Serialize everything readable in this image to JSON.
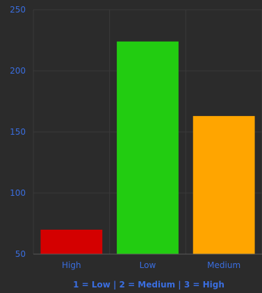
{
  "chart_data": {
    "type": "bar",
    "categories": [
      "High",
      "Low",
      "Medium"
    ],
    "values": [
      70,
      224,
      163
    ],
    "colors": [
      "#d40000",
      "#22cc11",
      "#ffa500"
    ],
    "xlabel": "1 = Low | 2 = Medium | 3 = High",
    "ylabel": "",
    "ylim": [
      50,
      250
    ],
    "yticks": [
      50,
      100,
      150,
      200,
      250
    ],
    "grid": true
  },
  "theme": {
    "background": "#2b2b2b",
    "grid_color": "#3a3a3a",
    "text_color": "#3a6ee0",
    "axis_color": "#5a5a5a"
  }
}
